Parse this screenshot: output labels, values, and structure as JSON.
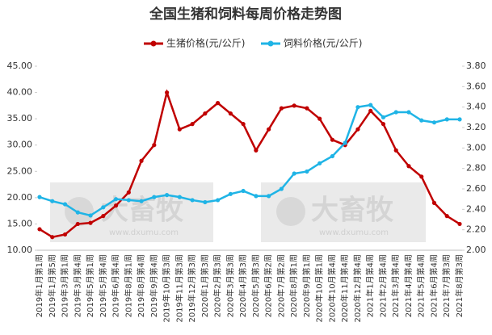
{
  "chart_data": {
    "type": "line",
    "title": "全国生猪和饲料每周价格走势图",
    "watermark": [
      "大畜牧",
      "www.dxumu.com"
    ],
    "categories": [
      "2019年1月第1周",
      "2019年1月第5周",
      "2019年3月第1周",
      "2019年3月第4周",
      "2019年5月第1周",
      "2019年5月第4周",
      "2019年6月第4周",
      "2019年8月第1周",
      "2019年8月第4周",
      "2019年9月第4周",
      "2019年10月第3周",
      "2019年11月第3周",
      "2019年12月第3周",
      "2020年1月第3周",
      "2020年2月第3周",
      "2020年3月第3周",
      "2020年4月第3周",
      "2020年5月第3周",
      "2020年6月第2周",
      "2020年7月第2周",
      "2020年8月第1周",
      "2020年9月第1周",
      "2020年10月第1周",
      "2020年10月第4周",
      "2020年11月第4周",
      "2020年12月第4周",
      "2021年1月第4周",
      "2021年2月第4周",
      "2021年3月第4周",
      "2021年4月第4周",
      "2021年5月第4周",
      "2021年6月第4周",
      "2021年7月第3周",
      "2021年8月第3周"
    ],
    "series": [
      {
        "name": "生猪价格(元/公斤)",
        "color": "#c00000",
        "values": [
          14,
          12.5,
          13,
          15,
          15.2,
          16.5,
          18.5,
          21,
          27,
          30,
          40,
          33,
          34,
          36,
          38,
          36,
          34,
          29,
          33,
          37,
          37.5,
          37,
          35,
          31,
          30,
          33,
          36.5,
          34,
          29,
          26,
          24,
          19,
          16.5,
          15
        ]
      },
      {
        "name": "饲料价格(元/公斤)",
        "color": "#1fb4e6",
        "axis": "y2",
        "values": [
          2.52,
          2.48,
          2.45,
          2.37,
          2.34,
          2.42,
          2.5,
          2.49,
          2.48,
          2.52,
          2.54,
          2.52,
          2.49,
          2.47,
          2.49,
          2.55,
          2.58,
          2.53,
          2.53,
          2.6,
          2.75,
          2.77,
          2.85,
          2.92,
          3.05,
          3.4,
          3.42,
          3.3,
          3.35,
          3.35,
          3.27,
          3.25,
          3.28,
          3.28
        ]
      }
    ],
    "ylim": [
      10,
      45
    ],
    "yticks": [
      {
        "value": 10,
        "label": "10.00"
      },
      {
        "value": 15,
        "label": "15.00"
      },
      {
        "value": 20,
        "label": "20.00"
      },
      {
        "value": 25,
        "label": "25.00"
      },
      {
        "value": 30,
        "label": "30.00"
      },
      {
        "value": 35,
        "label": "35.00"
      },
      {
        "value": 40,
        "label": "40.00"
      },
      {
        "value": 45,
        "label": "45.00"
      }
    ],
    "y2lim": [
      2.0,
      3.8
    ],
    "y2ticks": [
      {
        "value": 2,
        "label": "2.00"
      },
      {
        "value": 2.2,
        "label": "2.20"
      },
      {
        "value": 2.4,
        "label": "2.40"
      },
      {
        "value": 2.6,
        "label": "2.60"
      },
      {
        "value": 2.8,
        "label": "2.80"
      },
      {
        "value": 3,
        "label": "3.00"
      },
      {
        "value": 3.2,
        "label": "3.20"
      },
      {
        "value": 3.4,
        "label": "3.40"
      },
      {
        "value": 3.6,
        "label": "3.60"
      },
      {
        "value": 3.8,
        "label": "3.80"
      }
    ],
    "legend": "top"
  }
}
